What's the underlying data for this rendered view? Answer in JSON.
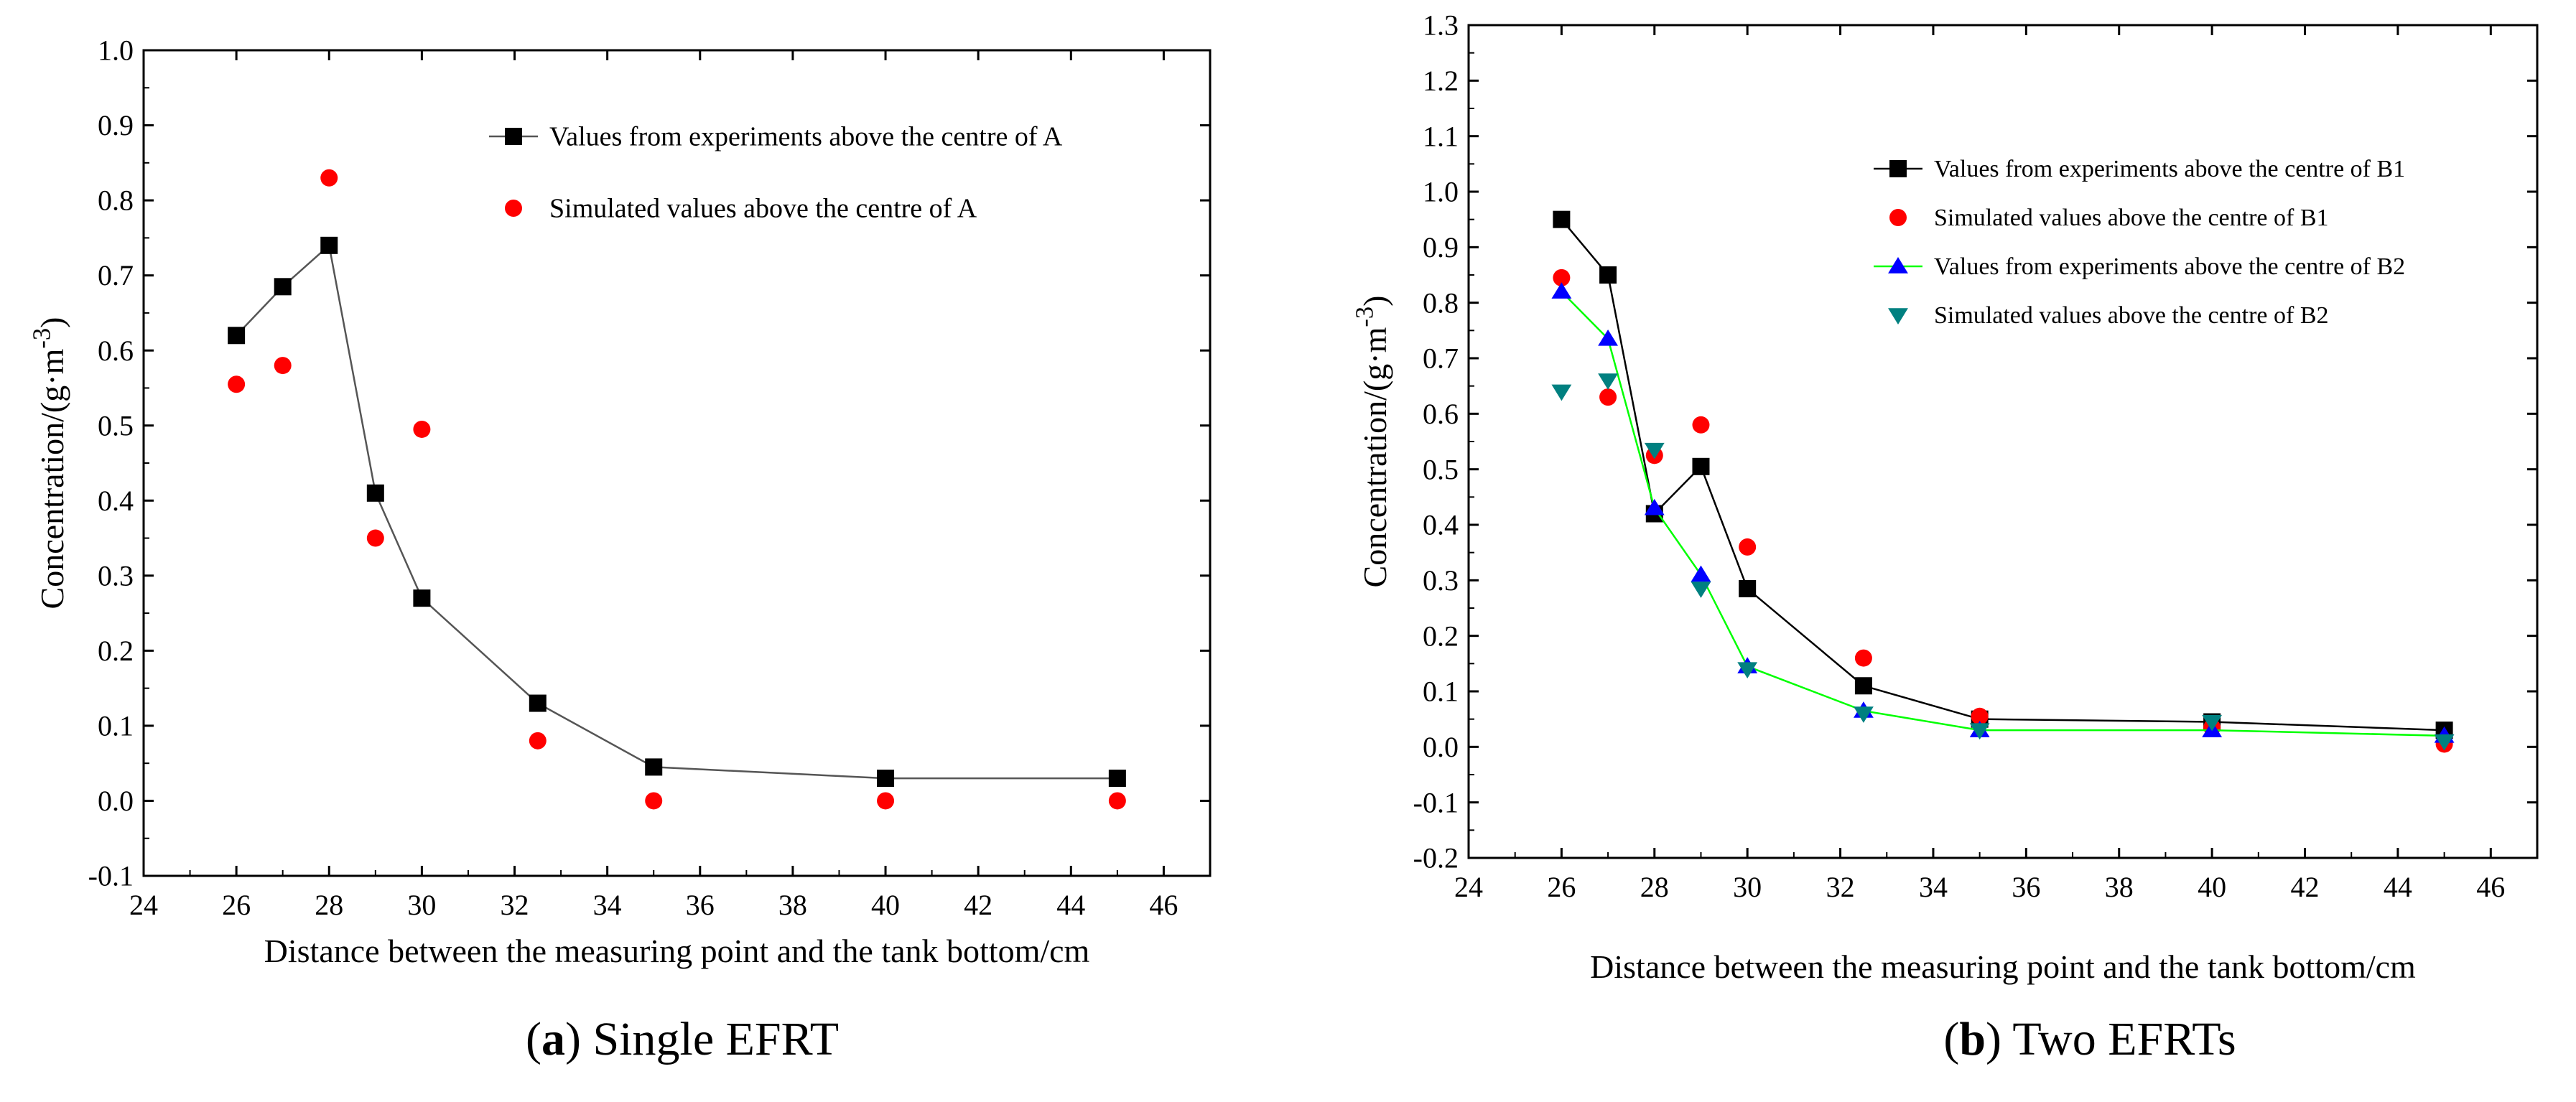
{
  "chart_data": [
    {
      "type": "line",
      "title": "",
      "xlabel": "Distance between the measuring point and the tank bottom/cm",
      "ylabel_main": "Concentration/(g·m",
      "ylabel_sup": "-3",
      "ylabel_close": ")",
      "xlim": [
        24,
        47
      ],
      "ylim": [
        -0.1,
        1.0
      ],
      "xticks": [
        24,
        26,
        28,
        30,
        32,
        34,
        36,
        38,
        40,
        42,
        44,
        46
      ],
      "yticks": [
        -0.1,
        0.0,
        0.1,
        0.2,
        0.3,
        0.4,
        0.5,
        0.6,
        0.7,
        0.8,
        0.9,
        1.0
      ],
      "legend_position": "top-right",
      "series": [
        {
          "name": "Values from experiments above the centre of A",
          "marker": "square",
          "color": "#000000",
          "line": true,
          "line_color": "#555555",
          "x": [
            26,
            27,
            28,
            29,
            30,
            32.5,
            35,
            40,
            45
          ],
          "y": [
            0.62,
            0.685,
            0.74,
            0.41,
            0.27,
            0.13,
            0.045,
            0.03,
            0.03
          ]
        },
        {
          "name": "Simulated values above the centre of A",
          "marker": "circle",
          "color": "#ff0000",
          "line": false,
          "x": [
            26,
            27,
            28,
            29,
            30,
            32.5,
            35,
            40,
            45
          ],
          "y": [
            0.555,
            0.58,
            0.83,
            0.35,
            0.495,
            0.08,
            0.0,
            0.0,
            0.0
          ]
        }
      ],
      "caption_label": "(a)",
      "caption_text": "Single EFRT"
    },
    {
      "type": "line",
      "title": "",
      "xlabel": "Distance between the measuring point and the tank bottom/cm",
      "ylabel_main": "Concentration/(g·m",
      "ylabel_sup": "-3",
      "ylabel_close": ")",
      "xlim": [
        24,
        47
      ],
      "ylim": [
        -0.2,
        1.3
      ],
      "xticks": [
        24,
        26,
        28,
        30,
        32,
        34,
        36,
        38,
        40,
        42,
        44,
        46
      ],
      "yticks": [
        -0.2,
        -0.1,
        0.0,
        0.1,
        0.2,
        0.3,
        0.4,
        0.5,
        0.6,
        0.7,
        0.8,
        0.9,
        1.0,
        1.1,
        1.2,
        1.3
      ],
      "legend_position": "top-right",
      "series": [
        {
          "name": "Values from experiments above the centre of B1",
          "marker": "square",
          "color": "#000000",
          "line": true,
          "line_color": "#000000",
          "x": [
            26,
            27,
            28,
            29,
            30,
            32.5,
            35,
            40,
            45
          ],
          "y": [
            0.95,
            0.85,
            0.42,
            0.505,
            0.285,
            0.11,
            0.05,
            0.045,
            0.03
          ]
        },
        {
          "name": "Simulated values above the centre of B1",
          "marker": "circle",
          "color": "#ff0000",
          "line": false,
          "x": [
            26,
            27,
            28,
            29,
            30,
            32.5,
            35,
            40,
            45
          ],
          "y": [
            0.845,
            0.63,
            0.525,
            0.58,
            0.36,
            0.16,
            0.055,
            0.035,
            0.005
          ]
        },
        {
          "name": "Values from experiments above the centre of B2",
          "marker": "triangle-up",
          "color": "#0000ff",
          "line": true,
          "line_color": "#00ff00",
          "x": [
            26,
            27,
            28,
            29,
            30,
            32.5,
            35,
            40,
            45
          ],
          "y": [
            0.82,
            0.735,
            0.43,
            0.31,
            0.145,
            0.065,
            0.03,
            0.03,
            0.02
          ]
        },
        {
          "name": "Simulated values above the centre of B2",
          "marker": "triangle-down",
          "color": "#008080",
          "line": false,
          "x": [
            26,
            27,
            28,
            29,
            30,
            32.5,
            35,
            40,
            45
          ],
          "y": [
            0.64,
            0.66,
            0.535,
            0.285,
            0.14,
            0.06,
            0.03,
            0.045,
            0.01
          ]
        }
      ],
      "caption_label": "(b)",
      "caption_text": "Two EFRTs"
    }
  ]
}
